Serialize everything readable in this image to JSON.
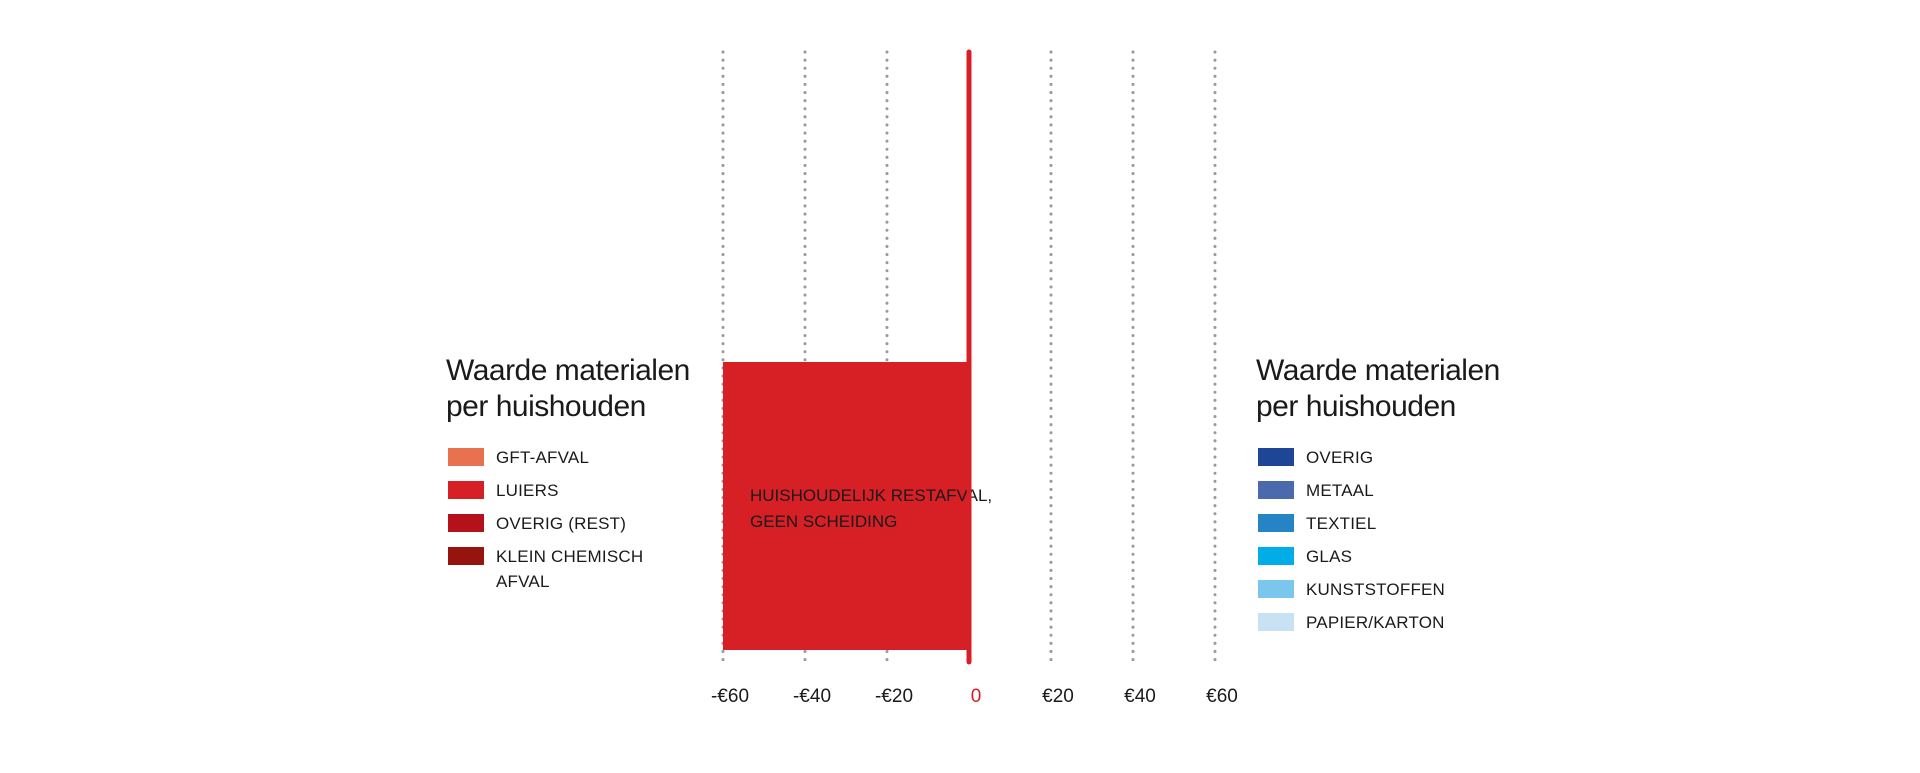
{
  "chart_data": {
    "type": "bar",
    "orientation": "horizontal",
    "xlim": [
      -60,
      60
    ],
    "x_ticks": [
      "-€60",
      "-€40",
      "-€20",
      "0",
      "€20",
      "€40",
      "€60"
    ],
    "x_tick_values": [
      -60,
      -40,
      -20,
      0,
      20,
      40,
      60
    ],
    "grid": true,
    "bars": [
      {
        "label_lines": [
          "HUISHOUDELIJK RESTAFVAL,",
          "GEEN SCHEIDING"
        ],
        "start": -60,
        "end": 0,
        "color": "#d71f26"
      }
    ],
    "legend_left": {
      "title_lines": [
        "Waarde materialen",
        "per huishouden"
      ],
      "items": [
        {
          "label": "GFT-AFVAL",
          "color": "#e8714f"
        },
        {
          "label": "LUIERS",
          "color": "#d71f26"
        },
        {
          "label": "OVERIG (REST)",
          "color": "#b5111a"
        },
        {
          "label": "KLEIN CHEMISCH AFVAL",
          "color": "#96140d"
        }
      ]
    },
    "legend_right": {
      "title_lines": [
        "Waarde materialen",
        "per huishouden"
      ],
      "items": [
        {
          "label": "OVERIG",
          "color": "#1f4597"
        },
        {
          "label": "METAAL",
          "color": "#4b69ad"
        },
        {
          "label": "TEXTIEL",
          "color": "#2484c6"
        },
        {
          "label": "GLAS",
          "color": "#00ade6"
        },
        {
          "label": "KUNSTSTOFFEN",
          "color": "#7ac6ec"
        },
        {
          "label": "PAPIER/KARTON",
          "color": "#c8e2f4"
        }
      ]
    },
    "colors": {
      "zero_line": "#d71f26",
      "grid": "#9a9a9a",
      "zero_tick": "#d71f26"
    }
  }
}
